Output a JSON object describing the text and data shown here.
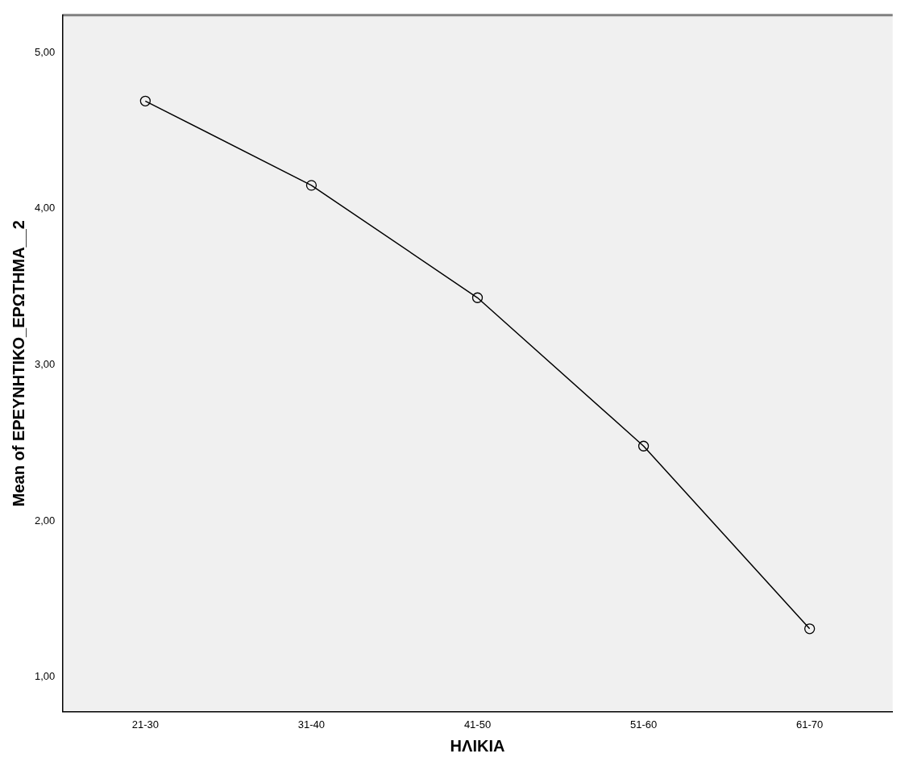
{
  "chart_data": {
    "type": "line",
    "xlabel": "ΗΛΙΚΙΑ",
    "ylabel": "Mean of ΕΡΕΥΝΗΤΙΚΟ_ΕΡΩΤΗΜΑ__2",
    "categories": [
      "21-30",
      "31-40",
      "41-50",
      "51-60",
      "61-70"
    ],
    "series": [
      {
        "color": "#000000",
        "values": [
          4.69,
          4.15,
          3.43,
          2.48,
          1.31
        ]
      }
    ],
    "ylim": [
      0.78,
      5.24
    ],
    "yticks": [
      {
        "value": 1,
        "label": "1,00"
      },
      {
        "value": 2,
        "label": "2,00"
      },
      {
        "value": 3,
        "label": "3,00"
      },
      {
        "value": 4,
        "label": "4,00"
      },
      {
        "value": 5,
        "label": "5,00"
      }
    ],
    "grid": false,
    "legend": false,
    "marker": "circle",
    "line_style": "solid"
  }
}
